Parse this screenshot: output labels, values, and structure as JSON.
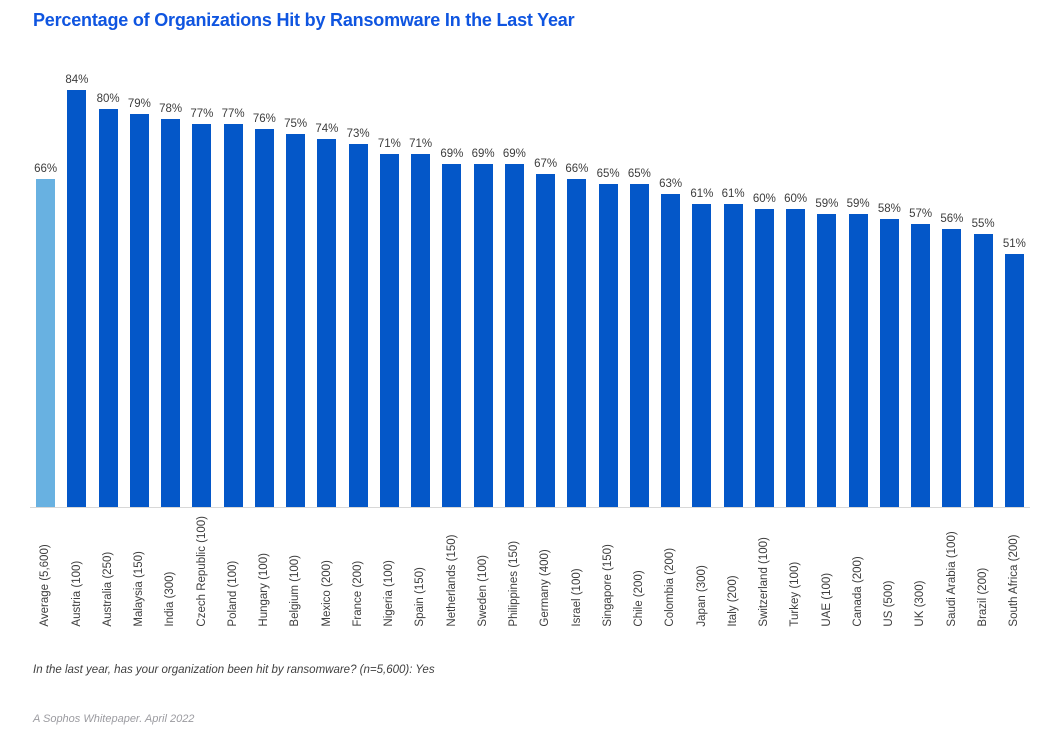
{
  "page": {
    "title": "Percentage of Organizations Hit by Ransomware In the Last Year",
    "footnote": "In the last year, has your organization been hit by ransomware? (n=5,600): Yes",
    "source": "A Sophos Whitepaper. April 2022"
  },
  "colors": {
    "background": "#ffffff",
    "title": "#0f55e0",
    "bar": "#0457c8",
    "bar_highlight": "#68b1e1",
    "value_label": "#3d3d3d",
    "axis_label": "#3d3d3d",
    "axis_line": "#d8d8d8",
    "footnote_text": "#3f3f3f",
    "source_text": "#9b9ba0"
  },
  "chart_data": {
    "type": "bar",
    "title": "Percentage of Organizations Hit by Ransomware In the Last Year",
    "categories": [
      "Average (5,600)",
      "Austria (100)",
      "Australia (250)",
      "Malaysia (150)",
      "India (300)",
      "Czech Republic (100)",
      "Poland (100)",
      "Hungary (100)",
      "Belgium (100)",
      "Mexico (200)",
      "France (200)",
      "Nigeria (100)",
      "Spain (150)",
      "Netherlands (150)",
      "Sweden (100)",
      "Philippines (150)",
      "Germany (400)",
      "Israel (100)",
      "Singapore (150)",
      "Chile (200)",
      "Colombia (200)",
      "Japan (300)",
      "Italy (200)",
      "Switzerland (100)",
      "Turkey (100)",
      "UAE (100)",
      "Canada (200)",
      "US (500)",
      "UK (300)",
      "Saudi Arabia (100)",
      "Brazil (200)",
      "South Africa (200)"
    ],
    "values": [
      66,
      84,
      80,
      79,
      78,
      77,
      77,
      76,
      75,
      74,
      73,
      71,
      71,
      69,
      69,
      69,
      67,
      66,
      65,
      65,
      63,
      61,
      61,
      60,
      60,
      59,
      59,
      58,
      57,
      56,
      55,
      51
    ],
    "value_suffix": "%",
    "highlight_index": 0,
    "xlabel": "",
    "ylabel": "",
    "ylim": [
      0,
      90
    ],
    "grid": false,
    "legend": "none",
    "bar_labels_position": "above bars",
    "x_tick_rotation": 90
  }
}
